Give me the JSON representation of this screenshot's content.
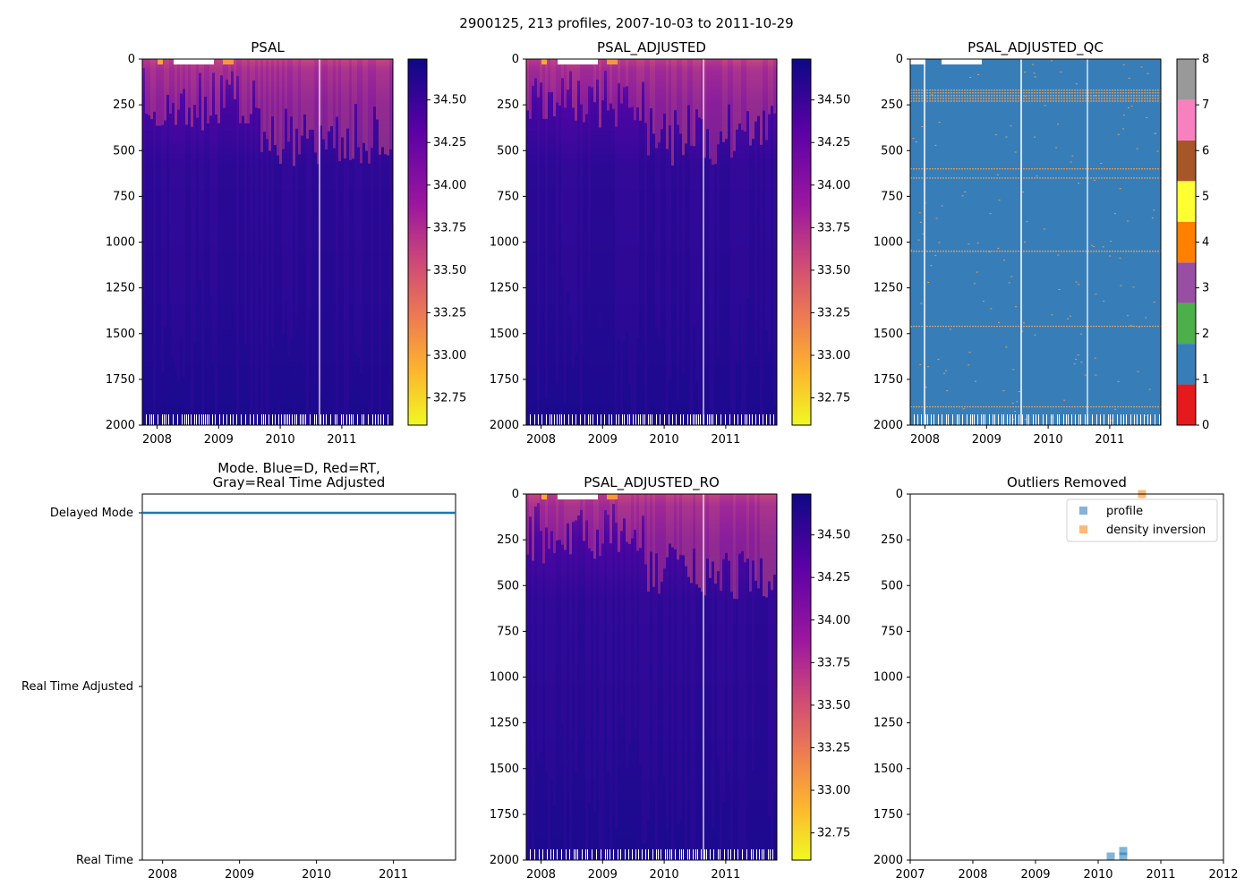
{
  "suptitle": "2900125, 213 profiles, 2007-10-03 to 2011-10-29",
  "chart_data": [
    {
      "id": "psal",
      "type": "heatmap",
      "title": "PSAL",
      "xlim": [
        2007.76,
        2011.83
      ],
      "ylim": [
        2000,
        0
      ],
      "xticks": [
        "2008",
        "2009",
        "2010",
        "2011"
      ],
      "yticks": [
        "0",
        "250",
        "500",
        "750",
        "1000",
        "1250",
        "1500",
        "1750",
        "2000"
      ],
      "colorbar": {
        "range": [
          32.59,
          34.74
        ],
        "ticks": [
          "32.75",
          "33.00",
          "33.25",
          "33.50",
          "33.75",
          "34.00",
          "34.25",
          "34.50"
        ],
        "cmap": "plasma_r"
      }
    },
    {
      "id": "psal_adjusted",
      "type": "heatmap",
      "title": "PSAL_ADJUSTED",
      "xlim": [
        2007.76,
        2011.83
      ],
      "ylim": [
        2000,
        0
      ],
      "xticks": [
        "2008",
        "2009",
        "2010",
        "2011"
      ],
      "yticks": [
        "0",
        "250",
        "500",
        "750",
        "1000",
        "1250",
        "1500",
        "1750",
        "2000"
      ],
      "colorbar": {
        "range": [
          32.59,
          34.74
        ],
        "ticks": [
          "32.75",
          "33.00",
          "33.25",
          "33.50",
          "33.75",
          "34.00",
          "34.25",
          "34.50"
        ],
        "cmap": "plasma_r"
      }
    },
    {
      "id": "psal_adjusted_qc",
      "type": "heatmap",
      "title": "PSAL_ADJUSTED_QC",
      "xlim": [
        2007.76,
        2011.83
      ],
      "ylim": [
        2000,
        0
      ],
      "xticks": [
        "2008",
        "2009",
        "2010",
        "2011"
      ],
      "yticks": [
        "0",
        "250",
        "500",
        "750",
        "1000",
        "1250",
        "1500",
        "1750",
        "2000"
      ],
      "colorbar": {
        "range": [
          0,
          8
        ],
        "ticks": [
          "0",
          "1",
          "2",
          "3",
          "4",
          "5",
          "6",
          "7",
          "8"
        ],
        "colors": [
          "#e41a1c",
          "#377eb8",
          "#4daf4a",
          "#984ea3",
          "#ff7f00",
          "#ffff33",
          "#a65628",
          "#f781bf",
          "#999999"
        ]
      },
      "flag4_depths": [
        170,
        185,
        200,
        215,
        230,
        600,
        650,
        1050,
        1460,
        1900
      ]
    },
    {
      "id": "mode",
      "type": "line",
      "title": "Mode. Blue=D, Red=RT,\nGray=Real Time Adjusted",
      "xlim": [
        2007.76,
        2011.83
      ],
      "xticks": [
        "2008",
        "2009",
        "2010",
        "2011"
      ],
      "yticks": [
        "Real Time",
        "Real Time Adjusted",
        "Delayed Mode"
      ],
      "series": [
        {
          "name": "mode",
          "color": "#1f77b4",
          "x": [
            2007.76,
            2011.83
          ],
          "y": [
            2,
            2
          ]
        }
      ]
    },
    {
      "id": "psal_adjusted_ro",
      "type": "heatmap",
      "title": "PSAL_ADJUSTED_RO",
      "xlim": [
        2007.76,
        2011.83
      ],
      "ylim": [
        2000,
        0
      ],
      "xticks": [
        "2008",
        "2009",
        "2010",
        "2011"
      ],
      "yticks": [
        "0",
        "250",
        "500",
        "750",
        "1000",
        "1250",
        "1500",
        "1750",
        "2000"
      ],
      "colorbar": {
        "range": [
          32.59,
          34.74
        ],
        "ticks": [
          "32.75",
          "33.00",
          "33.25",
          "33.50",
          "33.75",
          "34.00",
          "34.25",
          "34.50"
        ],
        "cmap": "plasma_r"
      }
    },
    {
      "id": "outliers",
      "type": "scatter",
      "title": "Outliers Removed",
      "xlim": [
        2007,
        2012
      ],
      "ylim": [
        2000,
        0
      ],
      "xticks": [
        "2007",
        "2008",
        "2009",
        "2010",
        "2011",
        "2012"
      ],
      "yticks": [
        "0",
        "250",
        "500",
        "750",
        "1000",
        "1250",
        "1500",
        "1750",
        "2000"
      ],
      "legend": {
        "placement": "top-right"
      },
      "series": [
        {
          "name": "profile",
          "color": "#1f77b4",
          "x": [
            2010.2,
            2010.4,
            2010.4
          ],
          "y": [
            2000,
            1950,
            2000
          ]
        },
        {
          "name": "density inversion",
          "color": "#ff7f0e",
          "x": [
            2010.7
          ],
          "y": [
            0
          ]
        }
      ]
    }
  ]
}
